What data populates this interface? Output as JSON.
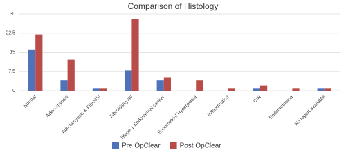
{
  "chart_data": {
    "type": "bar",
    "title": "Comparison of Histology",
    "categories": [
      "Normal",
      "Adenomyosis",
      "Adenomyosis & Fibroids",
      "Fibroids/cysts",
      "Stage 1 Endometrial cancer",
      "Endometrial Hyperplasia",
      "Inflammation",
      "CIN",
      "Endometrioma",
      "No report available"
    ],
    "series": [
      {
        "name": "Pre OpClear",
        "color": "#4f72b8",
        "values": [
          16,
          4,
          1,
          8,
          4,
          0,
          0,
          1,
          0,
          1
        ]
      },
      {
        "name": "Post OpClear",
        "color": "#b94c48",
        "values": [
          22,
          12,
          1,
          28,
          5,
          4,
          1,
          2,
          1,
          1
        ]
      }
    ],
    "ylim": [
      0,
      30
    ],
    "yticks": [
      0,
      7.5,
      15,
      22.5,
      30
    ],
    "grid": true,
    "legend": "bottom"
  }
}
